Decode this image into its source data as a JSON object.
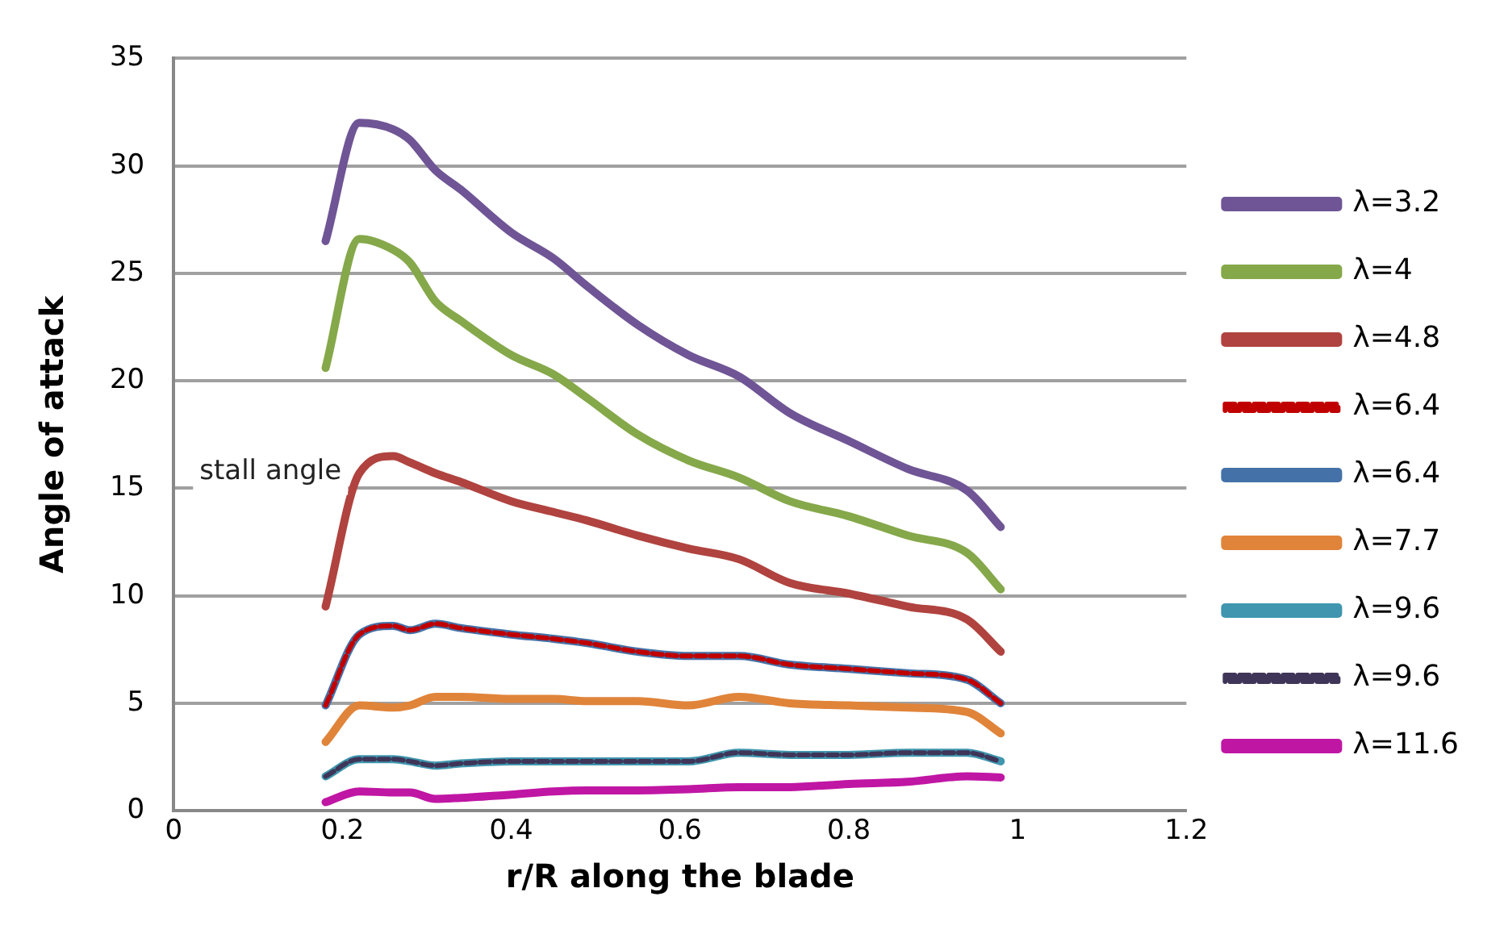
{
  "chart_data": {
    "type": "line",
    "xlabel": "r/R along the blade",
    "ylabel": "Angle of attack",
    "x": [
      0.18,
      0.22,
      0.26,
      0.28,
      0.31,
      0.34,
      0.4,
      0.45,
      0.49,
      0.55,
      0.61,
      0.67,
      0.73,
      0.8,
      0.87,
      0.94,
      0.98
    ],
    "series": [
      {
        "name": "λ=3.2",
        "color": "#6f5595",
        "values": [
          26.5,
          32.0,
          31.7,
          31.2,
          29.8,
          28.9,
          26.9,
          25.7,
          24.4,
          22.6,
          21.2,
          20.2,
          18.5,
          17.2,
          15.9,
          14.9,
          13.2
        ]
      },
      {
        "name": "λ=4",
        "color": "#85a84a",
        "values": [
          20.6,
          26.6,
          26.1,
          25.5,
          23.7,
          22.8,
          21.2,
          20.3,
          19.2,
          17.5,
          16.3,
          15.5,
          14.4,
          13.7,
          12.8,
          12.0,
          10.3
        ]
      },
      {
        "name": "λ=4.8",
        "color": "#b0433f",
        "values": [
          9.5,
          15.7,
          16.5,
          16.2,
          15.7,
          15.3,
          14.4,
          13.9,
          13.5,
          12.8,
          12.2,
          11.7,
          10.6,
          10.1,
          9.5,
          8.9,
          7.4
        ]
      },
      {
        "name": "λ=6.4",
        "color": "#c00000",
        "line_style": "dashed",
        "values": [
          4.9,
          8.2,
          8.6,
          8.4,
          8.7,
          8.5,
          8.2,
          8.0,
          7.8,
          7.4,
          7.2,
          7.2,
          6.8,
          6.6,
          6.4,
          6.1,
          5.0
        ]
      },
      {
        "name": "λ=6.4",
        "color": "#4472a8",
        "values": [
          4.9,
          8.2,
          8.6,
          8.4,
          8.7,
          8.5,
          8.2,
          8.0,
          7.8,
          7.4,
          7.2,
          7.2,
          6.8,
          6.6,
          6.4,
          6.1,
          5.0
        ]
      },
      {
        "name": "λ=7.7",
        "color": "#e0843a",
        "values": [
          3.2,
          4.9,
          4.8,
          4.9,
          5.3,
          5.3,
          5.2,
          5.2,
          5.1,
          5.1,
          4.9,
          5.3,
          5.0,
          4.9,
          4.8,
          4.6,
          3.6
        ]
      },
      {
        "name": "λ=9.6",
        "color": "#3f96ae",
        "values": [
          1.6,
          2.4,
          2.4,
          2.3,
          2.1,
          2.2,
          2.3,
          2.3,
          2.3,
          2.3,
          2.3,
          2.7,
          2.6,
          2.6,
          2.7,
          2.7,
          2.3
        ]
      },
      {
        "name": "λ=9.6",
        "color": "#3f3558",
        "line_style": "dashed",
        "values": [
          1.6,
          2.4,
          2.4,
          2.3,
          2.1,
          2.2,
          2.3,
          2.3,
          2.3,
          2.3,
          2.3,
          2.7,
          2.6,
          2.6,
          2.7,
          2.7,
          2.3
        ]
      },
      {
        "name": "λ=11.6",
        "color": "#c016a4",
        "values": [
          0.4,
          0.9,
          0.85,
          0.85,
          0.55,
          0.6,
          0.75,
          0.9,
          0.95,
          0.95,
          1.0,
          1.1,
          1.1,
          1.25,
          1.35,
          1.6,
          1.55
        ]
      }
    ],
    "xlim": [
      0,
      1.2
    ],
    "xticks": [
      0,
      0.2,
      0.4,
      0.6,
      0.8,
      1,
      1.2
    ],
    "ylim": [
      0,
      35
    ],
    "yticks": [
      0,
      5,
      10,
      15,
      20,
      25,
      30,
      35
    ],
    "annotations": [
      "stall angle"
    ],
    "grid": "y",
    "legend": "right",
    "marker": "none",
    "line_style": "solid"
  }
}
